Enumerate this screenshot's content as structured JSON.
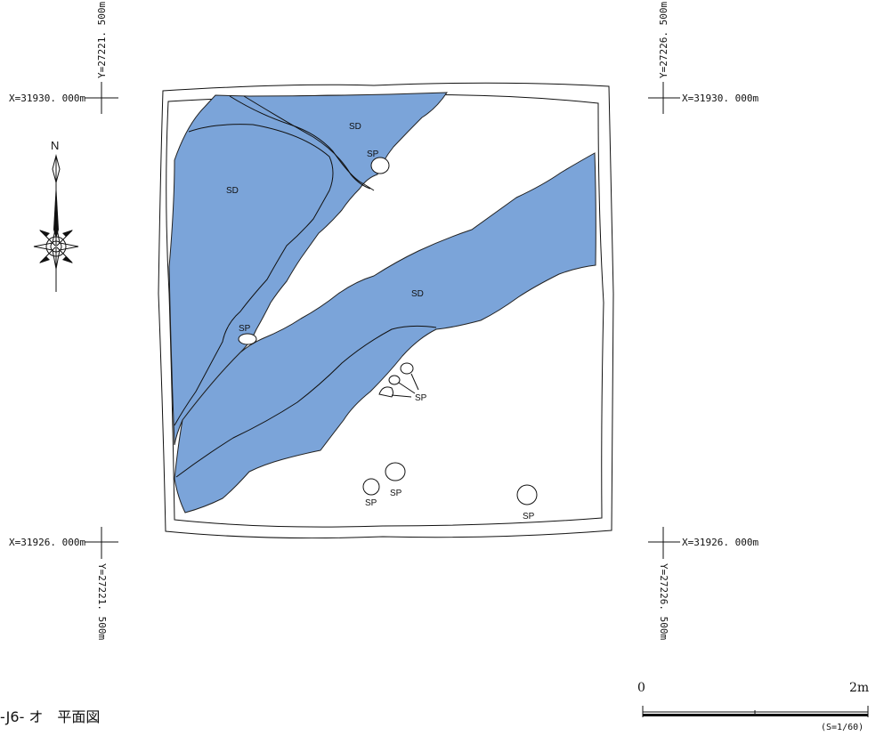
{
  "grid_points": {
    "nw_x": "X=31930. 000m",
    "nw_y": "Y=27221. 500m",
    "ne_x": "X=31930. 000m",
    "ne_y": "Y=27226. 500m",
    "sw_x": "X=31926. 000m",
    "sw_y": "Y=27221. 500m",
    "se_x": "X=31926. 000m",
    "se_y": "Y=27226. 500m"
  },
  "north_arrow": {
    "label": "N"
  },
  "features": {
    "sd_1": "SD",
    "sd_2": "SD",
    "sd_3": "SD",
    "sp_1": "SP",
    "sp_2": "SP",
    "sp_3": "SP",
    "sp_4": "SP",
    "sp_5": "SP",
    "sp_6": "SP"
  },
  "scale": {
    "start": "0",
    "end": "2m",
    "ratio": "(S=1/60)"
  },
  "caption": "-J6- オ　平面図",
  "colors": {
    "ditch_fill": "#7ba4d9",
    "ink": "#111111"
  }
}
